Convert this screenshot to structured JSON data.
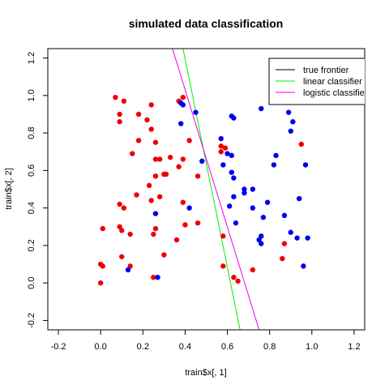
{
  "chart_data": {
    "type": "scatter",
    "title": "simulated data classification",
    "xlabel": "train$x[, 1]",
    "ylabel": "train$x[, 2]",
    "xlim": [
      -0.25,
      1.25
    ],
    "ylim": [
      -0.25,
      1.25
    ],
    "x_ticks": [
      "-0.2",
      "0.0",
      "0.2",
      "0.4",
      "0.6",
      "0.8",
      "1.0",
      "1.2"
    ],
    "y_ticks": [
      "-0.2",
      "0.0",
      "0.2",
      "0.4",
      "0.6",
      "0.8",
      "1.0",
      "1.2"
    ],
    "legend_position": "top-right",
    "grid": false,
    "series": [
      {
        "color": "#ee0000",
        "points": [
          [
            0.07,
            0.99
          ],
          [
            0.11,
            0.97
          ],
          [
            0.09,
            0.9
          ],
          [
            0.09,
            0.86
          ],
          [
            0.18,
            0.9
          ],
          [
            0.24,
            0.95
          ],
          [
            0.22,
            0.87
          ],
          [
            0.24,
            0.82
          ],
          [
            0.39,
            0.99
          ],
          [
            0.37,
            0.97
          ],
          [
            0.18,
            0.76
          ],
          [
            0.26,
            0.75
          ],
          [
            0.15,
            0.69
          ],
          [
            0.26,
            0.66
          ],
          [
            0.28,
            0.66
          ],
          [
            0.33,
            0.67
          ],
          [
            0.37,
            0.62
          ],
          [
            0.39,
            0.66
          ],
          [
            0.3,
            0.58
          ],
          [
            0.31,
            0.58
          ],
          [
            0.26,
            0.57
          ],
          [
            0.42,
            0.76
          ],
          [
            0.46,
            0.57
          ],
          [
            0.23,
            0.52
          ],
          [
            0.17,
            0.47
          ],
          [
            0.09,
            0.42
          ],
          [
            0.11,
            0.4
          ],
          [
            0.24,
            0.44
          ],
          [
            0.28,
            0.46
          ],
          [
            0.39,
            0.43
          ],
          [
            0.4,
            0.31
          ],
          [
            0.46,
            0.32
          ],
          [
            0.26,
            0.29
          ],
          [
            0.01,
            0.29
          ],
          [
            0.09,
            0.3
          ],
          [
            0.1,
            0.28
          ],
          [
            0.25,
            0.26
          ],
          [
            0.14,
            0.26
          ],
          [
            0.36,
            0.23
          ],
          [
            0.1,
            0.14
          ],
          [
            0.3,
            0.15
          ],
          [
            0.14,
            0.09
          ],
          [
            0.0,
            0.1
          ],
          [
            0.01,
            0.09
          ],
          [
            0.25,
            0.03
          ],
          [
            0.0,
            0.0
          ],
          [
            0.57,
            0.73
          ],
          [
            0.57,
            0.7
          ],
          [
            0.59,
            0.72
          ],
          [
            0.58,
            0.25
          ],
          [
            0.58,
            0.09
          ],
          [
            0.63,
            0.03
          ],
          [
            0.65,
            0.01
          ],
          [
            0.72,
            0.07
          ],
          [
            0.86,
            0.13
          ],
          [
            0.87,
            0.21
          ],
          [
            0.95,
            0.74
          ]
        ]
      },
      {
        "color": "#0000ee",
        "points": [
          [
            0.38,
            0.96
          ],
          [
            0.39,
            0.95
          ],
          [
            0.45,
            0.91
          ],
          [
            0.38,
            0.85
          ],
          [
            0.62,
            0.89
          ],
          [
            0.63,
            0.88
          ],
          [
            0.76,
            0.93
          ],
          [
            0.87,
            0.99
          ],
          [
            0.89,
            0.91
          ],
          [
            0.91,
            0.86
          ],
          [
            0.9,
            0.81
          ],
          [
            0.57,
            0.77
          ],
          [
            0.6,
            0.69
          ],
          [
            0.62,
            0.68
          ],
          [
            0.48,
            0.65
          ],
          [
            0.58,
            0.63
          ],
          [
            0.62,
            0.59
          ],
          [
            0.63,
            0.56
          ],
          [
            0.83,
            0.68
          ],
          [
            0.82,
            0.63
          ],
          [
            0.97,
            0.63
          ],
          [
            0.68,
            0.5
          ],
          [
            0.68,
            0.48
          ],
          [
            0.72,
            0.5
          ],
          [
            0.61,
            0.41
          ],
          [
            0.63,
            0.46
          ],
          [
            0.79,
            0.43
          ],
          [
            0.94,
            0.45
          ],
          [
            0.72,
            0.4
          ],
          [
            0.42,
            0.4
          ],
          [
            0.26,
            0.37
          ],
          [
            0.87,
            0.36
          ],
          [
            0.77,
            0.35
          ],
          [
            0.64,
            0.32
          ],
          [
            0.9,
            0.27
          ],
          [
            0.76,
            0.25
          ],
          [
            0.93,
            0.24
          ],
          [
            0.98,
            0.24
          ],
          [
            0.75,
            0.23
          ],
          [
            0.76,
            0.21
          ],
          [
            0.13,
            0.07
          ],
          [
            0.27,
            0.03
          ],
          [
            0.96,
            0.09
          ]
        ]
      }
    ],
    "lines": [
      {
        "name": "true frontier",
        "color": "#000000",
        "points": []
      },
      {
        "name": "linear classifier",
        "color": "#00ee00",
        "points": [
          [
            0.39,
            1.25
          ],
          [
            0.66,
            -0.25
          ]
        ]
      },
      {
        "name": "logistic classifier",
        "color": "#ee00ee",
        "points": [
          [
            0.34,
            1.25
          ],
          [
            0.75,
            -0.25
          ]
        ]
      }
    ]
  }
}
